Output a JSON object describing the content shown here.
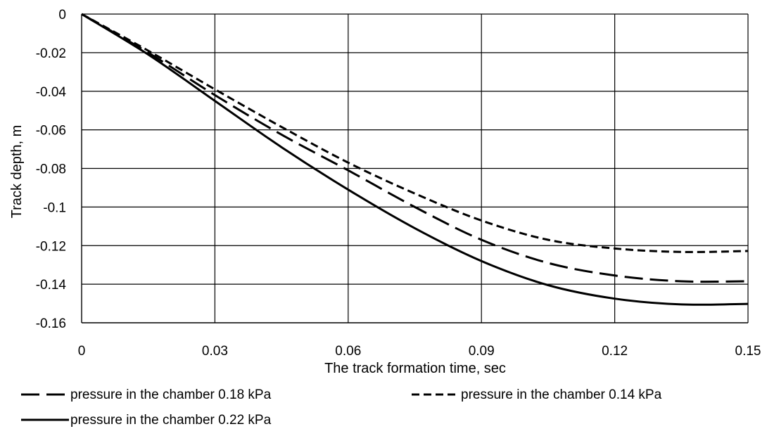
{
  "chart_data": {
    "type": "line",
    "xlabel": "The track formation time, sec",
    "ylabel": "Track depth, m",
    "xlim": [
      0,
      0.15
    ],
    "ylim": [
      -0.16,
      0
    ],
    "x_ticks": [
      0,
      0.03,
      0.06,
      0.09,
      0.12,
      0.15
    ],
    "x_tick_labels": [
      "0",
      "0.03",
      "0.06",
      "0.09",
      "0.12",
      "0.15"
    ],
    "y_ticks": [
      0,
      -0.02,
      -0.04,
      -0.06,
      -0.08,
      -0.1,
      -0.12,
      -0.14,
      -0.16
    ],
    "y_tick_labels": [
      "0",
      "-0.02",
      "-0.04",
      "-0.06",
      "-0.08",
      "-0.1",
      "-0.12",
      "-0.14",
      "-0.16"
    ],
    "grid": true,
    "legend_position": "bottom",
    "series": [
      {
        "name": "pressure in the chamber 0.18  kPa",
        "color": "#000000",
        "dash": "long-dash",
        "x": [
          0,
          0.015,
          0.03,
          0.045,
          0.06,
          0.075,
          0.09,
          0.105,
          0.12,
          0.135,
          0.15
        ],
        "y": [
          0,
          -0.02,
          -0.042,
          -0.0625,
          -0.081,
          -0.1,
          -0.117,
          -0.129,
          -0.1355,
          -0.1385,
          -0.1385
        ]
      },
      {
        "name": "pressure in the chamber 0.14 kPa",
        "color": "#000000",
        "dash": "short-dash",
        "x": [
          0,
          0.015,
          0.03,
          0.045,
          0.06,
          0.075,
          0.09,
          0.105,
          0.12,
          0.135,
          0.15
        ],
        "y": [
          0,
          -0.019,
          -0.039,
          -0.0585,
          -0.077,
          -0.093,
          -0.107,
          -0.117,
          -0.1215,
          -0.1233,
          -0.1228
        ]
      },
      {
        "name": "pressure in the chamber 0.22 kPa",
        "color": "#000000",
        "dash": "solid",
        "x": [
          0,
          0.015,
          0.03,
          0.045,
          0.06,
          0.075,
          0.09,
          0.105,
          0.12,
          0.135,
          0.15
        ],
        "y": [
          0,
          -0.021,
          -0.045,
          -0.069,
          -0.091,
          -0.111,
          -0.128,
          -0.1405,
          -0.1475,
          -0.1505,
          -0.1502
        ]
      }
    ]
  }
}
